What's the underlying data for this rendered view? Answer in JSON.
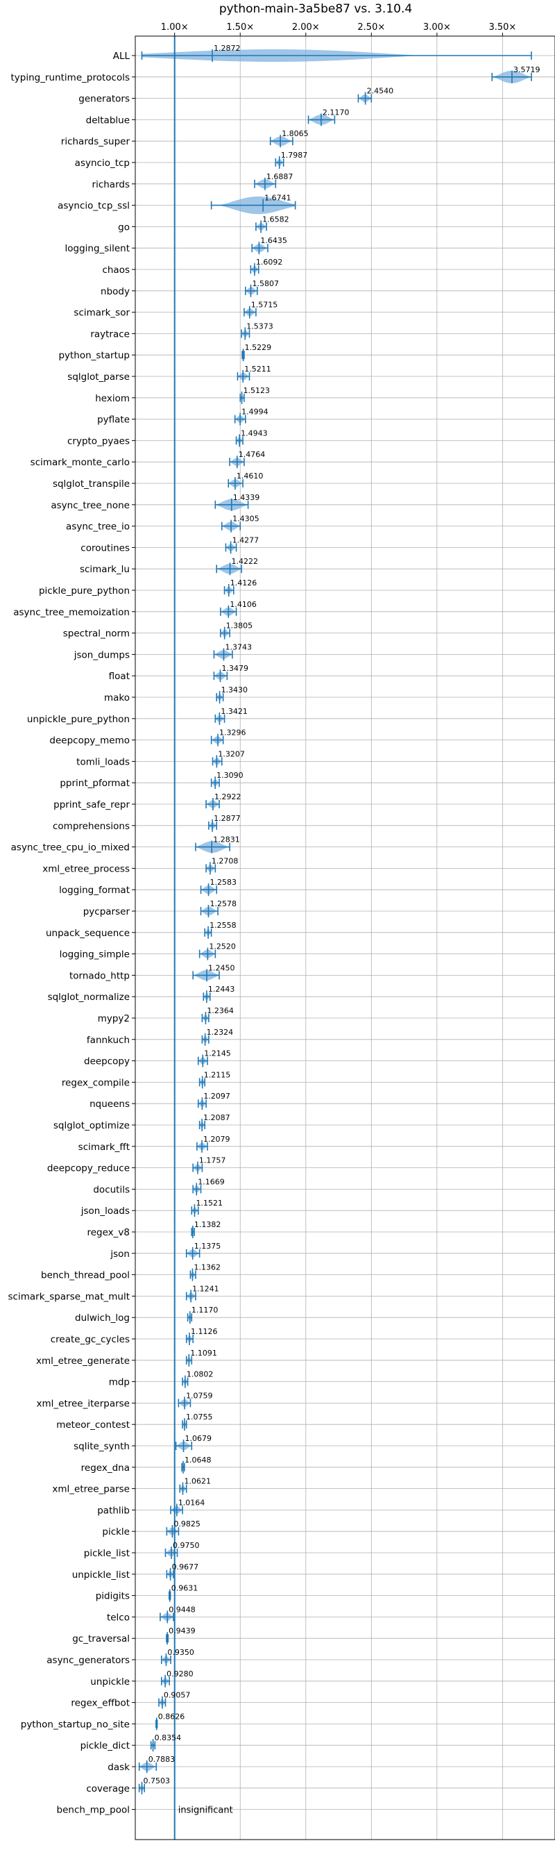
{
  "chart_data": {
    "type": "violin",
    "title": "python-main-3a5be87 vs. 3.10.4",
    "xlim": [
      0.7,
      3.9
    ],
    "x_ticks": [
      1.0,
      1.5,
      2.0,
      2.5,
      3.0,
      3.5
    ],
    "x_tick_labels": [
      "1.00×",
      "1.50×",
      "2.00×",
      "2.50×",
      "3.00×",
      "3.50×"
    ],
    "x_tick_position": "top",
    "grid": true,
    "reference_line": 1.0,
    "colors": {
      "violin": "#7fb1df",
      "line": "#1f77b4",
      "grid": "#b0b0b0",
      "axis": "#000000"
    },
    "benchmarks": [
      {
        "name": "ALL",
        "value": 1.2872,
        "label": "1.2872",
        "min": 0.75,
        "max": 3.72
      },
      {
        "name": "typing_runtime_protocols",
        "value": 3.5719,
        "label": "3.5719",
        "min": 3.42,
        "max": 3.72
      },
      {
        "name": "generators",
        "value": 2.454,
        "label": "2.4540",
        "min": 2.4,
        "max": 2.5
      },
      {
        "name": "deltablue",
        "value": 2.117,
        "label": "2.1170",
        "min": 2.02,
        "max": 2.22
      },
      {
        "name": "richards_super",
        "value": 1.8065,
        "label": "1.8065",
        "min": 1.73,
        "max": 1.9
      },
      {
        "name": "asyncio_tcp",
        "value": 1.7987,
        "label": "1.7987",
        "min": 1.77,
        "max": 1.83
      },
      {
        "name": "richards",
        "value": 1.6887,
        "label": "1.6887",
        "min": 1.61,
        "max": 1.77
      },
      {
        "name": "asyncio_tcp_ssl",
        "value": 1.6741,
        "label": "1.6741",
        "min": 1.28,
        "max": 1.92
      },
      {
        "name": "go",
        "value": 1.6582,
        "label": "1.6582",
        "min": 1.62,
        "max": 1.7
      },
      {
        "name": "logging_silent",
        "value": 1.6435,
        "label": "1.6435",
        "min": 1.59,
        "max": 1.71
      },
      {
        "name": "chaos",
        "value": 1.6092,
        "label": "1.6092",
        "min": 1.58,
        "max": 1.64
      },
      {
        "name": "nbody",
        "value": 1.5807,
        "label": "1.5807",
        "min": 1.54,
        "max": 1.63
      },
      {
        "name": "scimark_sor",
        "value": 1.5715,
        "label": "1.5715",
        "min": 1.53,
        "max": 1.62
      },
      {
        "name": "raytrace",
        "value": 1.5373,
        "label": "1.5373",
        "min": 1.51,
        "max": 1.57
      },
      {
        "name": "python_startup",
        "value": 1.5229,
        "label": "1.5229",
        "min": 1.515,
        "max": 1.53
      },
      {
        "name": "sqlglot_parse",
        "value": 1.5211,
        "label": "1.5211",
        "min": 1.48,
        "max": 1.57
      },
      {
        "name": "hexiom",
        "value": 1.5123,
        "label": "1.5123",
        "min": 1.5,
        "max": 1.53
      },
      {
        "name": "pyflate",
        "value": 1.4994,
        "label": "1.4994",
        "min": 1.46,
        "max": 1.54
      },
      {
        "name": "crypto_pyaes",
        "value": 1.4943,
        "label": "1.4943",
        "min": 1.47,
        "max": 1.52
      },
      {
        "name": "scimark_monte_carlo",
        "value": 1.4764,
        "label": "1.4764",
        "min": 1.42,
        "max": 1.53
      },
      {
        "name": "sqlglot_transpile",
        "value": 1.461,
        "label": "1.4610",
        "min": 1.41,
        "max": 1.52
      },
      {
        "name": "async_tree_none",
        "value": 1.4339,
        "label": "1.4339",
        "min": 1.31,
        "max": 1.56
      },
      {
        "name": "async_tree_io",
        "value": 1.4305,
        "label": "1.4305",
        "min": 1.36,
        "max": 1.5
      },
      {
        "name": "coroutines",
        "value": 1.4277,
        "label": "1.4277",
        "min": 1.39,
        "max": 1.47
      },
      {
        "name": "scimark_lu",
        "value": 1.4222,
        "label": "1.4222",
        "min": 1.32,
        "max": 1.51
      },
      {
        "name": "pickle_pure_python",
        "value": 1.4126,
        "label": "1.4126",
        "min": 1.38,
        "max": 1.45
      },
      {
        "name": "async_tree_memoization",
        "value": 1.4106,
        "label": "1.4106",
        "min": 1.35,
        "max": 1.47
      },
      {
        "name": "spectral_norm",
        "value": 1.3805,
        "label": "1.3805",
        "min": 1.35,
        "max": 1.42
      },
      {
        "name": "json_dumps",
        "value": 1.3743,
        "label": "1.3743",
        "min": 1.3,
        "max": 1.44
      },
      {
        "name": "float",
        "value": 1.3479,
        "label": "1.3479",
        "min": 1.3,
        "max": 1.4
      },
      {
        "name": "mako",
        "value": 1.343,
        "label": "1.3430",
        "min": 1.32,
        "max": 1.37
      },
      {
        "name": "unpickle_pure_python",
        "value": 1.3421,
        "label": "1.3421",
        "min": 1.31,
        "max": 1.38
      },
      {
        "name": "deepcopy_memo",
        "value": 1.3296,
        "label": "1.3296",
        "min": 1.28,
        "max": 1.37
      },
      {
        "name": "tomli_loads",
        "value": 1.3207,
        "label": "1.3207",
        "min": 1.29,
        "max": 1.36
      },
      {
        "name": "pprint_pformat",
        "value": 1.309,
        "label": "1.3090",
        "min": 1.28,
        "max": 1.34
      },
      {
        "name": "pprint_safe_repr",
        "value": 1.2922,
        "label": "1.2922",
        "min": 1.24,
        "max": 1.34
      },
      {
        "name": "comprehensions",
        "value": 1.2877,
        "label": "1.2877",
        "min": 1.26,
        "max": 1.32
      },
      {
        "name": "async_tree_cpu_io_mixed",
        "value": 1.2831,
        "label": "1.2831",
        "min": 1.16,
        "max": 1.42
      },
      {
        "name": "xml_etree_process",
        "value": 1.2708,
        "label": "1.2708",
        "min": 1.24,
        "max": 1.31
      },
      {
        "name": "logging_format",
        "value": 1.2583,
        "label": "1.2583",
        "min": 1.2,
        "max": 1.32
      },
      {
        "name": "pycparser",
        "value": 1.2578,
        "label": "1.2578",
        "min": 1.2,
        "max": 1.33
      },
      {
        "name": "unpack_sequence",
        "value": 1.2558,
        "label": "1.2558",
        "min": 1.23,
        "max": 1.28
      },
      {
        "name": "logging_simple",
        "value": 1.252,
        "label": "1.2520",
        "min": 1.19,
        "max": 1.31
      },
      {
        "name": "tornado_http",
        "value": 1.245,
        "label": "1.2450",
        "min": 1.14,
        "max": 1.34
      },
      {
        "name": "sqlglot_normalize",
        "value": 1.2443,
        "label": "1.2443",
        "min": 1.22,
        "max": 1.27
      },
      {
        "name": "mypy2",
        "value": 1.2364,
        "label": "1.2364",
        "min": 1.21,
        "max": 1.26
      },
      {
        "name": "fannkuch",
        "value": 1.2324,
        "label": "1.2324",
        "min": 1.21,
        "max": 1.26
      },
      {
        "name": "deepcopy",
        "value": 1.2145,
        "label": "1.2145",
        "min": 1.18,
        "max": 1.25
      },
      {
        "name": "regex_compile",
        "value": 1.2115,
        "label": "1.2115",
        "min": 1.19,
        "max": 1.23
      },
      {
        "name": "nqueens",
        "value": 1.2097,
        "label": "1.2097",
        "min": 1.18,
        "max": 1.24
      },
      {
        "name": "sqlglot_optimize",
        "value": 1.2087,
        "label": "1.2087",
        "min": 1.19,
        "max": 1.23
      },
      {
        "name": "scimark_fft",
        "value": 1.2079,
        "label": "1.2079",
        "min": 1.17,
        "max": 1.25
      },
      {
        "name": "deepcopy_reduce",
        "value": 1.1757,
        "label": "1.1757",
        "min": 1.14,
        "max": 1.21
      },
      {
        "name": "docutils",
        "value": 1.1669,
        "label": "1.1669",
        "min": 1.14,
        "max": 1.2
      },
      {
        "name": "json_loads",
        "value": 1.1521,
        "label": "1.1521",
        "min": 1.13,
        "max": 1.18
      },
      {
        "name": "regex_v8",
        "value": 1.1382,
        "label": "1.1382",
        "min": 1.13,
        "max": 1.15
      },
      {
        "name": "json",
        "value": 1.1375,
        "label": "1.1375",
        "min": 1.09,
        "max": 1.19
      },
      {
        "name": "bench_thread_pool",
        "value": 1.1362,
        "label": "1.1362",
        "min": 1.12,
        "max": 1.16
      },
      {
        "name": "scimark_sparse_mat_mult",
        "value": 1.1241,
        "label": "1.1241",
        "min": 1.09,
        "max": 1.16
      },
      {
        "name": "dulwich_log",
        "value": 1.117,
        "label": "1.1170",
        "min": 1.1,
        "max": 1.13
      },
      {
        "name": "create_gc_cycles",
        "value": 1.1126,
        "label": "1.1126",
        "min": 1.09,
        "max": 1.14
      },
      {
        "name": "xml_etree_generate",
        "value": 1.1091,
        "label": "1.1091",
        "min": 1.09,
        "max": 1.13
      },
      {
        "name": "mdp",
        "value": 1.0802,
        "label": "1.0802",
        "min": 1.06,
        "max": 1.1
      },
      {
        "name": "xml_etree_iterparse",
        "value": 1.0759,
        "label": "1.0759",
        "min": 1.03,
        "max": 1.12
      },
      {
        "name": "meteor_contest",
        "value": 1.0755,
        "label": "1.0755",
        "min": 1.06,
        "max": 1.09
      },
      {
        "name": "sqlite_synth",
        "value": 1.0679,
        "label": "1.0679",
        "min": 1.01,
        "max": 1.13
      },
      {
        "name": "regex_dna",
        "value": 1.0648,
        "label": "1.0648",
        "min": 1.055,
        "max": 1.075
      },
      {
        "name": "xml_etree_parse",
        "value": 1.0621,
        "label": "1.0621",
        "min": 1.04,
        "max": 1.09
      },
      {
        "name": "pathlib",
        "value": 1.0164,
        "label": "1.0164",
        "min": 0.97,
        "max": 1.06
      },
      {
        "name": "pickle",
        "value": 0.9825,
        "label": "0.9825",
        "min": 0.94,
        "max": 1.03
      },
      {
        "name": "pickle_list",
        "value": 0.975,
        "label": "0.9750",
        "min": 0.93,
        "max": 1.02
      },
      {
        "name": "unpickle_list",
        "value": 0.9677,
        "label": "0.9677",
        "min": 0.94,
        "max": 0.99
      },
      {
        "name": "pidigits",
        "value": 0.9631,
        "label": "0.9631",
        "min": 0.958,
        "max": 0.968
      },
      {
        "name": "telco",
        "value": 0.9448,
        "label": "0.9448",
        "min": 0.89,
        "max": 0.99
      },
      {
        "name": "gc_traversal",
        "value": 0.9439,
        "label": "0.9439",
        "min": 0.938,
        "max": 0.95
      },
      {
        "name": "async_generators",
        "value": 0.935,
        "label": "0.9350",
        "min": 0.9,
        "max": 0.97
      },
      {
        "name": "unpickle",
        "value": 0.928,
        "label": "0.9280",
        "min": 0.9,
        "max": 0.96
      },
      {
        "name": "regex_effbot",
        "value": 0.9057,
        "label": "0.9057",
        "min": 0.88,
        "max": 0.93
      },
      {
        "name": "python_startup_no_site",
        "value": 0.8626,
        "label": "0.8626",
        "min": 0.858,
        "max": 0.867
      },
      {
        "name": "pickle_dict",
        "value": 0.8354,
        "label": "0.8354",
        "min": 0.82,
        "max": 0.85
      },
      {
        "name": "dask",
        "value": 0.7883,
        "label": "0.7883",
        "min": 0.73,
        "max": 0.86
      },
      {
        "name": "coverage",
        "value": 0.7503,
        "label": "0.7503",
        "min": 0.73,
        "max": 0.77
      },
      {
        "name": "bench_mp_pool",
        "value": null,
        "label": "insignificant",
        "min": null,
        "max": null
      }
    ]
  }
}
